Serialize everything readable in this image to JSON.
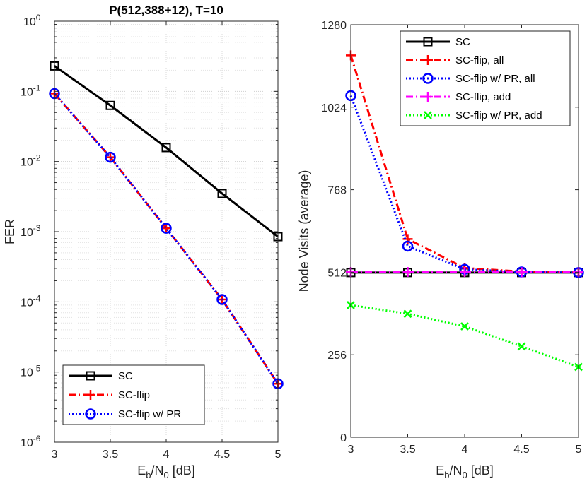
{
  "chart_data": [
    {
      "type": "line",
      "title": "P(512,388+12), T=10",
      "xlabel": {
        "main": "E",
        "sub1": "b",
        "mid": "/N",
        "sub2": "0",
        "tail": " [dB]"
      },
      "ylabel": "FER",
      "yscale": "log",
      "xlim": [
        3,
        5
      ],
      "ylim": [
        1e-06,
        1
      ],
      "x_ticks": [
        "3",
        "3.5",
        "4",
        "4.5",
        "5"
      ],
      "y_ticks": [
        {
          "base": "10",
          "exp": "0"
        },
        {
          "base": "10",
          "exp": "-1"
        },
        {
          "base": "10",
          "exp": "-2"
        },
        {
          "base": "10",
          "exp": "-3"
        },
        {
          "base": "10",
          "exp": "-4"
        },
        {
          "base": "10",
          "exp": "-5"
        },
        {
          "base": "10",
          "exp": "-6"
        }
      ],
      "grid": true,
      "legend_position": "bottom-left",
      "x": [
        3,
        3.5,
        4,
        4.5,
        5
      ],
      "series": [
        {
          "name": "SC",
          "color": "#000000",
          "style": "solid",
          "marker": "square",
          "values": [
            0.23,
            0.063,
            0.0158,
            0.0035,
            0.00085
          ]
        },
        {
          "name": "SC-flip",
          "color": "#ff0000",
          "style": "dashdot",
          "marker": "plus",
          "values": [
            0.093,
            0.0115,
            0.00112,
            0.000108,
            6.8e-06
          ]
        },
        {
          "name": "SC-flip w/ PR",
          "color": "#0000ff",
          "style": "dotted",
          "marker": "circle",
          "values": [
            0.093,
            0.0115,
            0.00112,
            0.000108,
            6.8e-06
          ]
        }
      ]
    },
    {
      "type": "line",
      "title": "",
      "xlabel": {
        "main": "E",
        "sub1": "b",
        "mid": "/N",
        "sub2": "0",
        "tail": " [dB]"
      },
      "ylabel": "Node Visits (average)",
      "yscale": "linear",
      "xlim": [
        3,
        5
      ],
      "ylim": [
        0,
        1280
      ],
      "x_ticks": [
        "3",
        "3.5",
        "4",
        "4.5",
        "5"
      ],
      "y_ticks": [
        "0",
        "256",
        "512",
        "768",
        "1024",
        "1280"
      ],
      "grid": false,
      "legend_position": "top-right",
      "x": [
        3,
        3.5,
        4,
        4.5,
        5
      ],
      "series": [
        {
          "name": "SC",
          "color": "#000000",
          "style": "solid",
          "marker": "square",
          "values": [
            511,
            511,
            511,
            511,
            511
          ]
        },
        {
          "name": "SC-flip, all",
          "color": "#ff0000",
          "style": "dashdot",
          "marker": "plus",
          "values": [
            1185,
            615,
            525,
            514,
            511
          ]
        },
        {
          "name": "SC-flip w/ PR, all",
          "color": "#0000ff",
          "style": "dotted",
          "marker": "circle",
          "values": [
            1060,
            593,
            521,
            513,
            511
          ]
        },
        {
          "name": "SC-flip, add",
          "color": "#ff00ff",
          "style": "dashdot",
          "marker": "plus",
          "values": [
            513,
            513,
            513,
            512,
            512
          ]
        },
        {
          "name": "SC-flip w/ PR, add",
          "color": "#00ff00",
          "style": "dotted",
          "marker": "x",
          "values": [
            410,
            383,
            344,
            282,
            218
          ]
        }
      ]
    }
  ]
}
